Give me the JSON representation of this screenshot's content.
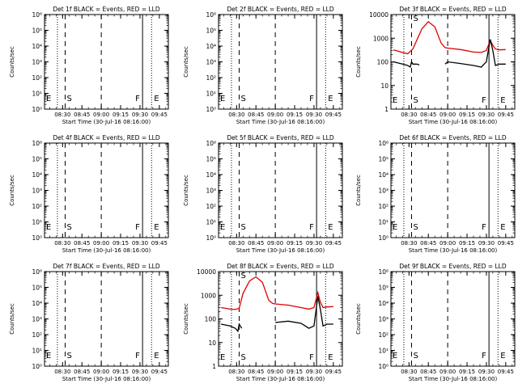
{
  "common": {
    "xlabel": "Start Time (30-Jul-16 08:16:00)",
    "ylabel": "Counts/sec",
    "x_ticks": [
      "08:30",
      "08:45",
      "09:00",
      "09:15",
      "09:30",
      "09:45"
    ],
    "y_ticks_decade": [
      "10⁰",
      "10¹",
      "10²",
      "10³",
      "10⁴",
      "10⁵",
      "10⁶"
    ],
    "y_ticks_plain": [
      "1",
      "10",
      "100",
      "1000",
      "10000"
    ],
    "markers": {
      "E": "E",
      "S": "S",
      "F": "F"
    },
    "colors": {
      "events": "#000000",
      "lld": "#e00000"
    }
  },
  "chart_data": [
    {
      "type": "line",
      "title": "Det 1f BLACK = Events, RED = LLD",
      "has_data": false,
      "yscale": "log",
      "ylim": [
        1,
        1000000
      ]
    },
    {
      "type": "line",
      "title": "Det 2f BLACK = Events, RED = LLD",
      "has_data": false,
      "yscale": "log",
      "ylim": [
        1,
        1000000
      ]
    },
    {
      "type": "line",
      "title": "Det 3f BLACK = Events, RED = LLD",
      "has_data": true,
      "yscale": "log",
      "ylim": [
        1,
        10000
      ],
      "series": [
        {
          "color": "#e00000",
          "x": [
            "08:18",
            "08:25",
            "08:29",
            "08:33",
            "08:40",
            "08:45",
            "08:50",
            "08:55",
            "08:58",
            "09:00",
            "09:10",
            "09:20",
            "09:26",
            "09:30",
            "09:33",
            "09:35",
            "09:37",
            "09:40",
            "09:45"
          ],
          "values": [
            320,
            250,
            220,
            350,
            2500,
            5000,
            3000,
            600,
            400,
            380,
            330,
            260,
            250,
            300,
            800,
            500,
            350,
            320,
            330
          ]
        },
        {
          "color": "#000000",
          "x": [
            "08:18",
            "08:25",
            "08:29",
            "08:31",
            "08:32",
            "08:33",
            "08:36",
            "08:38",
            "08:40",
            "08:55",
            "08:58",
            "09:00",
            "09:10",
            "09:20",
            "09:26",
            "09:30",
            "09:33",
            "09:35",
            "09:37",
            "09:40",
            "09:45"
          ],
          "values": [
            100,
            80,
            70,
            60,
            100,
            80,
            80,
            75,
            null,
            null,
            80,
            100,
            85,
            70,
            60,
            100,
            900,
            300,
            70,
            80,
            80
          ]
        }
      ]
    },
    {
      "type": "line",
      "title": "Det 4f BLACK = Events, RED = LLD",
      "has_data": false,
      "yscale": "log",
      "ylim": [
        1,
        1000000
      ]
    },
    {
      "type": "line",
      "title": "Det 5f BLACK = Events, RED = LLD",
      "has_data": false,
      "yscale": "log",
      "ylim": [
        1,
        1000000
      ]
    },
    {
      "type": "line",
      "title": "Det 6f BLACK = Events, RED = LLD",
      "has_data": false,
      "yscale": "log",
      "ylim": [
        1,
        1000000
      ]
    },
    {
      "type": "line",
      "title": "Det 7f BLACK = Events, RED = LLD",
      "has_data": false,
      "yscale": "log",
      "ylim": [
        1,
        1000000
      ]
    },
    {
      "type": "line",
      "title": "Det 8f BLACK = Events, RED = LLD",
      "has_data": true,
      "yscale": "log",
      "ylim": [
        1,
        10000
      ],
      "series": [
        {
          "color": "#e00000",
          "x": [
            "08:18",
            "08:25",
            "08:29",
            "08:32",
            "08:35",
            "08:40",
            "08:45",
            "08:50",
            "08:55",
            "08:58",
            "09:00",
            "09:10",
            "09:20",
            "09:26",
            "09:30",
            "09:33",
            "09:35",
            "09:37",
            "09:40",
            "09:45"
          ],
          "values": [
            300,
            260,
            250,
            280,
            1200,
            4000,
            6000,
            3500,
            600,
            450,
            430,
            380,
            300,
            260,
            300,
            1300,
            500,
            300,
            320,
            330
          ]
        },
        {
          "color": "#000000",
          "x": [
            "08:18",
            "08:25",
            "08:29",
            "08:31",
            "08:32",
            "08:34",
            "08:36",
            "08:38",
            "08:40",
            "08:58",
            "09:00",
            "09:10",
            "09:20",
            "09:26",
            "09:30",
            "09:33",
            "09:35",
            "09:37",
            "09:40",
            "09:45"
          ],
          "values": [
            60,
            50,
            40,
            30,
            60,
            40,
            null,
            null,
            null,
            null,
            70,
            80,
            65,
            40,
            50,
            900,
            250,
            50,
            60,
            60
          ]
        }
      ]
    },
    {
      "type": "line",
      "title": "Det 9f BLACK = Events, RED = LLD",
      "has_data": false,
      "yscale": "log",
      "ylim": [
        1,
        1000000
      ]
    }
  ]
}
